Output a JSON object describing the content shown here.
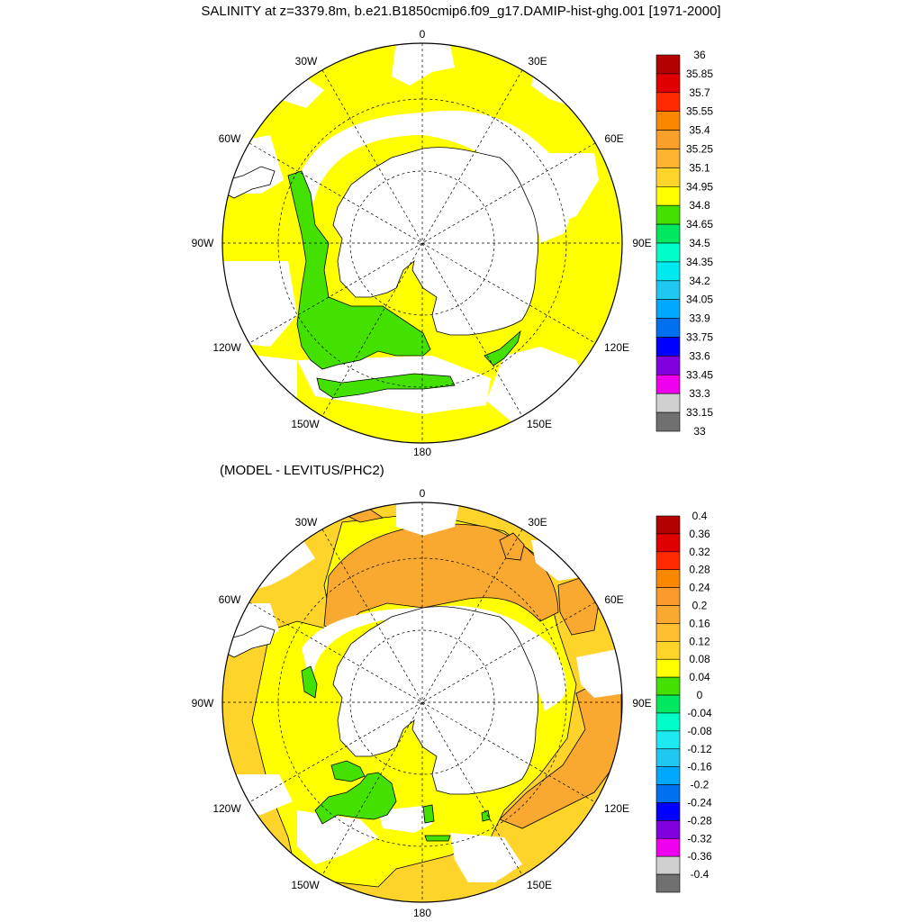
{
  "title": "SALINITY at z=3379.8m, b.e21.B1850cmip6.f09_g17.DAMIP-hist-ghg.001 [1971-2000]",
  "subtitle": "(MODEL - LEVITUS/PHC2)",
  "lon_labels": {
    "top": "0",
    "upper_left": "30W",
    "upper_right": "30E",
    "left_upper": "60W",
    "right_upper": "60E",
    "left": "90W",
    "right": "90E",
    "left_lower": "120W",
    "right_lower": "120E",
    "lower_left": "150W",
    "lower_right": "150E",
    "bottom": "180"
  },
  "colors": {
    "land": "#ffffff",
    "missing": "#ffffff",
    "outline": "#000000"
  },
  "chart_data": [
    {
      "type": "heatmap",
      "projection": "south-polar-stereographic",
      "variable": "SALINITY at z=3379.8m",
      "period": "1971-2000",
      "colorbar": {
        "labels": [
          "36",
          "35.85",
          "35.7",
          "35.55",
          "35.4",
          "35.25",
          "35.1",
          "34.95",
          "34.8",
          "34.65",
          "34.5",
          "34.35",
          "34.2",
          "34.05",
          "33.9",
          "33.75",
          "33.6",
          "33.45",
          "33.3",
          "33.15",
          "33"
        ],
        "colors": [
          "#b40000",
          "#e00000",
          "#ff2a00",
          "#f98800",
          "#f9a02a",
          "#ffb430",
          "#ffd42a",
          "#ffff00",
          "#44e000",
          "#00e860",
          "#00ffc8",
          "#00e8f0",
          "#1ec8f0",
          "#00a8ff",
          "#0070f0",
          "#0000ff",
          "#8000e0",
          "#ee00ee",
          "#d0d0d0",
          "#707070"
        ]
      },
      "regions": [
        {
          "value_range": [
            34.8,
            34.95
          ],
          "color": "#ffff00",
          "description_area": "most of ocean"
        },
        {
          "value_range": [
            34.65,
            34.8
          ],
          "color": "#44e000",
          "description_area": "Weddell/Ross patches"
        }
      ]
    },
    {
      "type": "heatmap",
      "projection": "south-polar-stereographic",
      "variable": "(MODEL - LEVITUS/PHC2)",
      "colorbar": {
        "labels": [
          "0.4",
          "0.36",
          "0.32",
          "0.28",
          "0.24",
          "0.2",
          "0.16",
          "0.12",
          "0.08",
          "0.04",
          "0",
          "-0.04",
          "-0.08",
          "-0.12",
          "-0.16",
          "-0.2",
          "-0.24",
          "-0.28",
          "-0.32",
          "-0.36",
          "-0.4"
        ],
        "colors": [
          "#b40000",
          "#e00000",
          "#ff2a00",
          "#f98800",
          "#f99a2a",
          "#f9a830",
          "#ffbf30",
          "#ffd42a",
          "#ffff00",
          "#44e000",
          "#00e860",
          "#00ffc8",
          "#1ee8f0",
          "#1ec8f0",
          "#00a8ff",
          "#0070f0",
          "#0000ff",
          "#8000e0",
          "#ee00ee",
          "#d0d0d0",
          "#707070"
        ]
      },
      "regions": [
        {
          "value_range": [
            0.2,
            0.24
          ],
          "color": "#f9a830"
        },
        {
          "value_range": [
            0.12,
            0.16
          ],
          "color": "#ffd42a"
        },
        {
          "value_range": [
            0.08,
            0.12
          ],
          "color": "#ffff00"
        },
        {
          "value_range": [
            0.04,
            0.08
          ],
          "color": "#44e000"
        }
      ]
    }
  ]
}
